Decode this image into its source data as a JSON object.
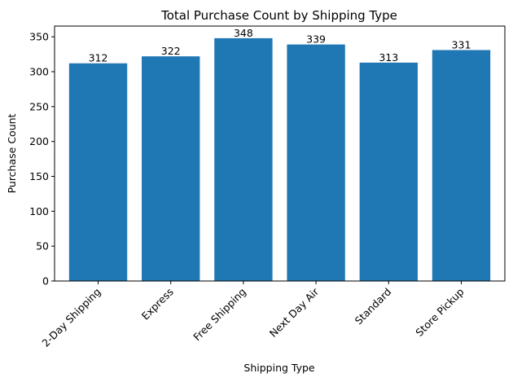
{
  "chart_data": {
    "type": "bar",
    "title": "Total Purchase Count by Shipping Type",
    "xlabel": "Shipping Type",
    "ylabel": "Purchase Count",
    "categories": [
      "2-Day Shipping",
      "Express",
      "Free Shipping",
      "Next Day Air",
      "Standard",
      "Store Pickup"
    ],
    "values": [
      312,
      322,
      348,
      339,
      313,
      331
    ],
    "data_labels": [
      "312",
      "322",
      "348",
      "339",
      "313",
      "331"
    ],
    "ylim": [
      0,
      365.4
    ],
    "yticks": [
      0,
      50,
      100,
      150,
      200,
      250,
      300,
      350
    ],
    "ytick_labels": [
      "0",
      "50",
      "100",
      "150",
      "200",
      "250",
      "300",
      "350"
    ],
    "bar_color": "#1f77b4",
    "grid": false,
    "legend": "none"
  }
}
